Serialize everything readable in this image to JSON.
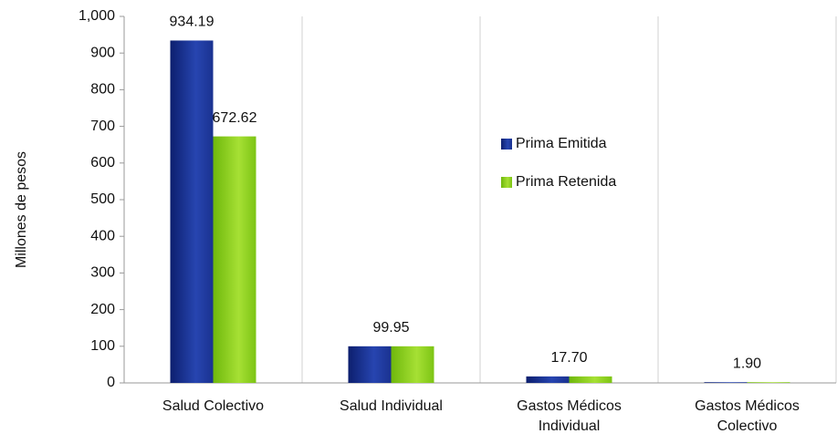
{
  "chart_data": {
    "type": "bar",
    "y_label": "Millones de pesos",
    "categories": [
      [
        "Salud Colectivo"
      ],
      [
        "Salud Individual"
      ],
      [
        "Gastos Médicos",
        "Individual"
      ],
      [
        "Gastos Médicos",
        "Colectivo"
      ]
    ],
    "series": [
      {
        "name": "Prima Emitida",
        "color": "#1f3a9c",
        "values": [
          934.19,
          99.95,
          17.7,
          1.9
        ],
        "value_labels": [
          "934.19",
          "99.95",
          "17.70",
          "1.90"
        ]
      },
      {
        "name": "Prima Retenida",
        "color": "#8cd11c",
        "values": [
          672.62,
          99.95,
          17.7,
          1.9
        ],
        "value_labels": [
          "672.62",
          null,
          null,
          null
        ]
      }
    ],
    "ylim": [
      0,
      1000
    ],
    "yticks": [
      0,
      100,
      200,
      300,
      400,
      500,
      600,
      700,
      800,
      900,
      {
        "value": 1000,
        "label": "1,000"
      }
    ],
    "grid": true,
    "legend": "center"
  }
}
